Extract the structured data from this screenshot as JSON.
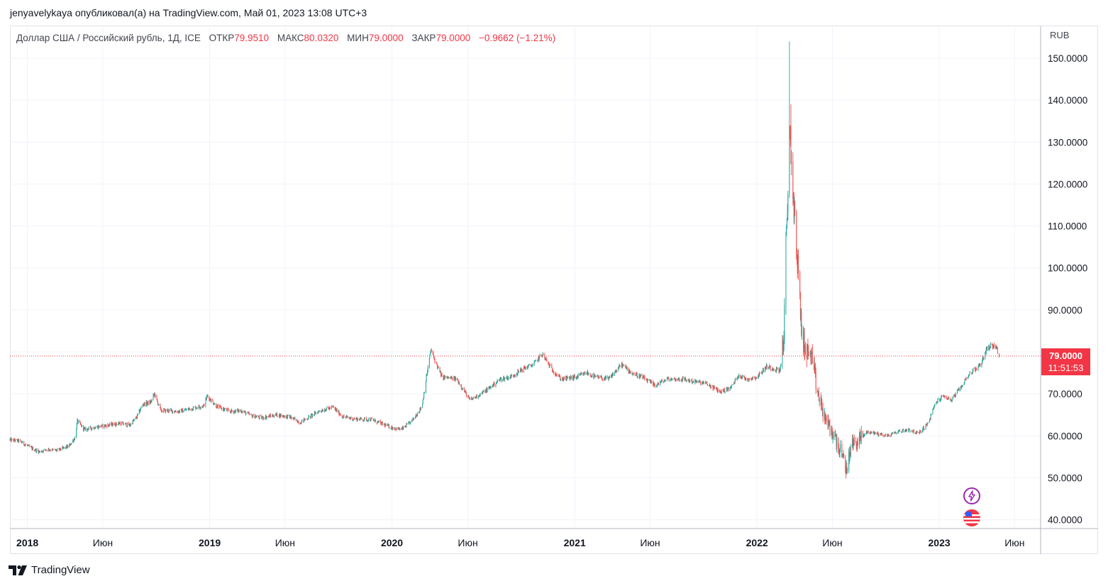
{
  "publisher": "jenyavelykaya опубликовал(а) на TradingView.com, Май 01, 2023 13:08 UTC+3",
  "legend": {
    "symbol": "Доллар США / Российский рубль, 1Д, ICE",
    "open_label": "ОТКР",
    "open_value": "79.9510",
    "high_label": "МАКС",
    "high_value": "80.0320",
    "low_label": "МИН",
    "low_value": "79.0000",
    "close_label": "ЗАКР",
    "close_value": "79.0000",
    "change": "−0.9662 (−1.21%)"
  },
  "currency": "RUB",
  "price_badge": {
    "price": "79.0000",
    "countdown": "11:51:53"
  },
  "footer": {
    "brand": "TradingView"
  },
  "colors": {
    "up": "#26a69a",
    "down": "#ef5350",
    "grid": "#f0f3fa",
    "last_price": "#f23645",
    "text": "#131722"
  },
  "icons": {
    "event": "bolt-icon",
    "country": "us-flag-icon",
    "logo": "tradingview-logo-icon"
  },
  "chart_data": {
    "type": "candlestick",
    "title": "Доллар США / Российский рубль, 1Д, ICE",
    "x_ticks": [
      {
        "label": "2018",
        "date": "2018-01-01",
        "bold": true
      },
      {
        "label": "Июн",
        "date": "2018-06-01",
        "bold": false
      },
      {
        "label": "2019",
        "date": "2019-01-01",
        "bold": true
      },
      {
        "label": "Июн",
        "date": "2019-06-01",
        "bold": false
      },
      {
        "label": "2020",
        "date": "2020-01-01",
        "bold": true
      },
      {
        "label": "Июн",
        "date": "2020-06-01",
        "bold": false
      },
      {
        "label": "2021",
        "date": "2021-01-01",
        "bold": true
      },
      {
        "label": "Июн",
        "date": "2021-06-01",
        "bold": false
      },
      {
        "label": "2022",
        "date": "2022-01-01",
        "bold": true
      },
      {
        "label": "Июн",
        "date": "2022-06-01",
        "bold": false
      },
      {
        "label": "2023",
        "date": "2023-01-01",
        "bold": true
      },
      {
        "label": "Июн",
        "date": "2023-06-01",
        "bold": false
      }
    ],
    "y_ticks": [
      "40.0000",
      "50.0000",
      "60.0000",
      "70.0000",
      "80.0000",
      "90.0000",
      "100.0000",
      "110.0000",
      "120.0000",
      "130.0000",
      "140.0000",
      "150.0000"
    ],
    "ylim": [
      38,
      154
    ],
    "last_price": 79.0,
    "grid": true,
    "series": [
      {
        "anchors": [
          [
            "2017-11-27",
            59.0
          ],
          [
            "2017-12-15",
            58.8
          ],
          [
            "2018-01-10",
            57.0
          ],
          [
            "2018-01-25",
            56.2
          ],
          [
            "2018-02-10",
            56.8
          ],
          [
            "2018-03-01",
            56.5
          ],
          [
            "2018-03-25",
            57.5
          ],
          [
            "2018-04-06",
            59.5
          ],
          [
            "2018-04-11",
            63.5
          ],
          [
            "2018-04-25",
            61.5
          ],
          [
            "2018-05-15",
            62.0
          ],
          [
            "2018-06-10",
            62.5
          ],
          [
            "2018-07-05",
            63.0
          ],
          [
            "2018-07-25",
            62.5
          ],
          [
            "2018-08-08",
            64.5
          ],
          [
            "2018-08-20",
            67.5
          ],
          [
            "2018-09-05",
            68.0
          ],
          [
            "2018-09-12",
            70.0
          ],
          [
            "2018-09-25",
            66.0
          ],
          [
            "2018-10-10",
            66.0
          ],
          [
            "2018-11-01",
            65.8
          ],
          [
            "2018-11-25",
            66.5
          ],
          [
            "2018-12-20",
            67.2
          ],
          [
            "2018-12-27",
            69.5
          ],
          [
            "2019-01-15",
            67.0
          ],
          [
            "2019-02-10",
            65.8
          ],
          [
            "2019-03-05",
            66.0
          ],
          [
            "2019-03-25",
            64.8
          ],
          [
            "2019-04-15",
            64.3
          ],
          [
            "2019-05-15",
            65.0
          ],
          [
            "2019-06-10",
            64.5
          ],
          [
            "2019-07-01",
            63.2
          ],
          [
            "2019-08-10",
            66.0
          ],
          [
            "2019-09-05",
            66.8
          ],
          [
            "2019-09-25",
            64.5
          ],
          [
            "2019-10-20",
            64.0
          ],
          [
            "2019-11-20",
            63.9
          ],
          [
            "2019-12-30",
            62.0
          ],
          [
            "2020-01-20",
            61.5
          ],
          [
            "2020-02-10",
            63.5
          ],
          [
            "2020-03-01",
            67.0
          ],
          [
            "2020-03-10",
            74.0
          ],
          [
            "2020-03-19",
            80.5
          ],
          [
            "2020-03-27",
            78.0
          ],
          [
            "2020-04-10",
            74.0
          ],
          [
            "2020-05-10",
            73.5
          ],
          [
            "2020-06-05",
            68.5
          ],
          [
            "2020-06-20",
            69.5
          ],
          [
            "2020-07-10",
            71.0
          ],
          [
            "2020-08-05",
            73.5
          ],
          [
            "2020-08-25",
            74.0
          ],
          [
            "2020-09-20",
            76.0
          ],
          [
            "2020-10-10",
            77.0
          ],
          [
            "2020-10-28",
            79.5
          ],
          [
            "2020-11-15",
            76.0
          ],
          [
            "2020-12-05",
            73.5
          ],
          [
            "2021-01-05",
            74.0
          ],
          [
            "2021-01-25",
            75.0
          ],
          [
            "2021-02-10",
            74.0
          ],
          [
            "2021-03-10",
            73.5
          ],
          [
            "2021-04-05",
            77.0
          ],
          [
            "2021-04-25",
            75.0
          ],
          [
            "2021-05-15",
            74.0
          ],
          [
            "2021-06-10",
            72.0
          ],
          [
            "2021-07-05",
            73.5
          ],
          [
            "2021-08-05",
            73.5
          ],
          [
            "2021-08-25",
            73.0
          ],
          [
            "2021-09-20",
            72.5
          ],
          [
            "2021-10-20",
            70.5
          ],
          [
            "2021-11-10",
            71.5
          ],
          [
            "2021-11-25",
            74.5
          ],
          [
            "2021-12-10",
            73.5
          ],
          [
            "2022-01-01",
            74.0
          ],
          [
            "2022-01-20",
            76.5
          ],
          [
            "2022-02-05",
            76.0
          ],
          [
            "2022-02-16",
            75.5
          ],
          [
            "2022-02-24",
            84.0
          ],
          [
            "2022-02-28",
            105.0
          ],
          [
            "2022-03-03",
            112.0
          ],
          [
            "2022-03-07",
            135.0
          ],
          [
            "2022-03-10",
            128.0
          ],
          [
            "2022-03-14",
            118.0
          ],
          [
            "2022-03-24",
            100.0
          ],
          [
            "2022-04-01",
            84.0
          ],
          [
            "2022-04-10",
            80.0
          ],
          [
            "2022-04-20",
            79.0
          ],
          [
            "2022-05-01",
            71.0
          ],
          [
            "2022-05-12",
            66.0
          ],
          [
            "2022-05-25",
            62.0
          ],
          [
            "2022-06-05",
            60.0
          ],
          [
            "2022-06-15",
            57.0
          ],
          [
            "2022-06-29",
            52.0
          ],
          [
            "2022-07-10",
            58.0
          ],
          [
            "2022-07-25",
            59.0
          ],
          [
            "2022-08-10",
            61.0
          ],
          [
            "2022-08-30",
            60.5
          ],
          [
            "2022-09-20",
            60.0
          ],
          [
            "2022-10-10",
            61.0
          ],
          [
            "2022-11-01",
            61.5
          ],
          [
            "2022-11-20",
            60.5
          ],
          [
            "2022-12-10",
            63.0
          ],
          [
            "2022-12-25",
            68.0
          ],
          [
            "2023-01-10",
            69.5
          ],
          [
            "2023-01-25",
            68.5
          ],
          [
            "2023-02-10",
            71.0
          ],
          [
            "2023-02-28",
            74.5
          ],
          [
            "2023-03-10",
            75.5
          ],
          [
            "2023-03-25",
            77.0
          ],
          [
            "2023-04-05",
            80.5
          ],
          [
            "2023-04-14",
            81.5
          ],
          [
            "2023-04-25",
            81.3
          ],
          [
            "2023-04-28",
            80.0
          ],
          [
            "2023-05-01",
            79.0
          ]
        ],
        "spikes": [
          {
            "date": "2022-03-07",
            "high": 154.0
          },
          {
            "date": "2022-03-10",
            "high": 139.0
          },
          {
            "date": "2022-06-30",
            "low": 50.9
          }
        ]
      }
    ]
  }
}
